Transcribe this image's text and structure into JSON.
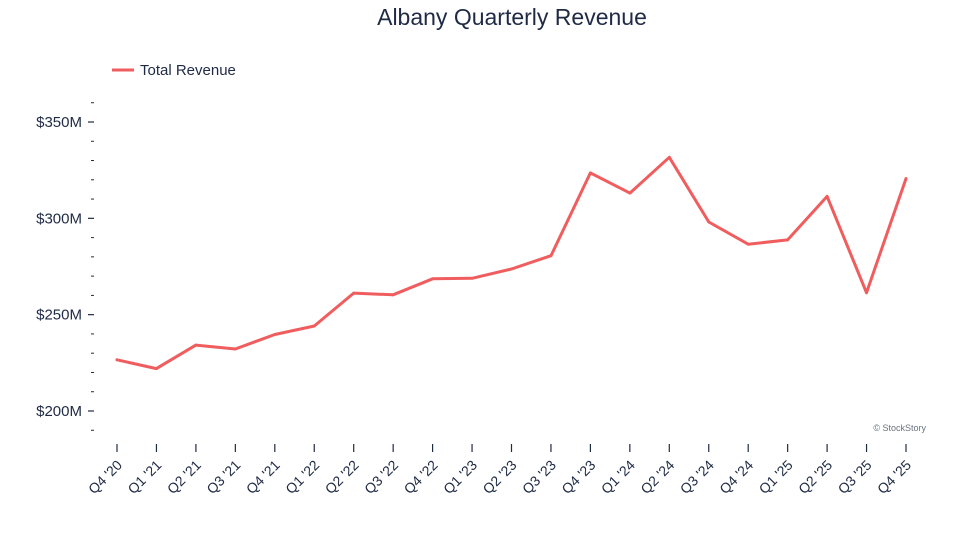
{
  "chart_data": {
    "type": "line",
    "title": "Albany Quarterly Revenue",
    "categories": [
      "Q4 '20",
      "Q1 '21",
      "Q2 '21",
      "Q3 '21",
      "Q4 '21",
      "Q1 '22",
      "Q2 '22",
      "Q3 '22",
      "Q4 '22",
      "Q1 '23",
      "Q2 '23",
      "Q3 '23",
      "Q4 '23",
      "Q1 '24",
      "Q2 '24",
      "Q3 '24",
      "Q4 '24",
      "Q1 '25",
      "Q2 '25",
      "Q3 '25",
      "Q4 '25"
    ],
    "series": [
      {
        "name": "Total Revenue",
        "color": "#f05d5e",
        "values": [
          226.6,
          222.0,
          234.2,
          232.2,
          239.7,
          244.1,
          261.2,
          260.3,
          268.6,
          268.9,
          273.7,
          280.6,
          323.6,
          313.1,
          331.7,
          298.1,
          286.6,
          288.8,
          311.4,
          261.4,
          320.6
        ]
      }
    ],
    "yticks": [
      200,
      250,
      300,
      350
    ],
    "ytick_labels": [
      "$200M",
      "$250M",
      "$300M",
      "$350M"
    ],
    "ylim": [
      190,
      360
    ],
    "xlabel": "",
    "ylabel": "",
    "legend": "top-left",
    "grid": false
  },
  "watermark": "© StockStory"
}
